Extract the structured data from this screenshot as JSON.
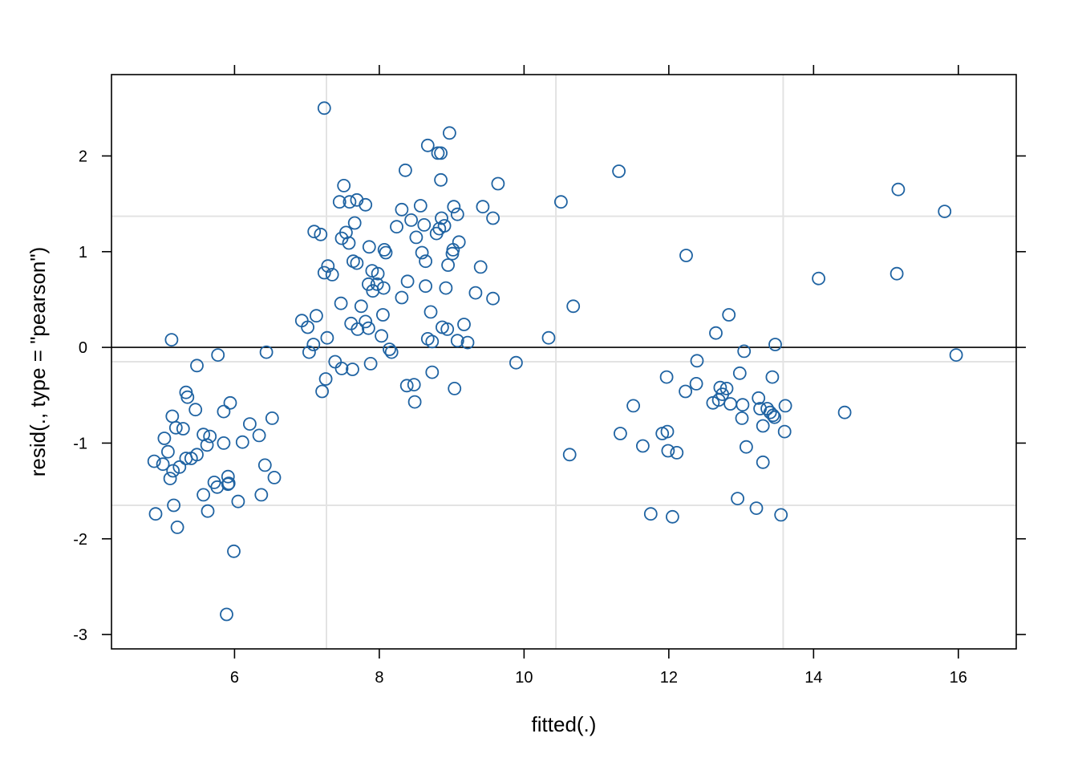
{
  "chart_data": {
    "type": "scatter",
    "xlabel": "fitted(.)",
    "ylabel": "resid(., type = \"pearson\")",
    "xlim": [
      4.3,
      16.8
    ],
    "ylim": [
      -3.15,
      2.85
    ],
    "x_ticks": [
      6,
      8,
      10,
      12,
      14,
      16
    ],
    "y_ticks": [
      -3,
      -2,
      -1,
      0,
      1,
      2
    ],
    "x_tick_labels": [
      "6",
      "8",
      "10",
      "12",
      "14",
      "16"
    ],
    "y_tick_labels": [
      "-3",
      "-2",
      "-1",
      "0",
      "1",
      "2"
    ],
    "reference_lines": {
      "x": [
        7.27,
        10.44,
        13.58
      ],
      "y": [
        -1.65,
        -0.15,
        1.37
      ]
    },
    "zero_line": 0,
    "grid": true,
    "marker_color": "#1f63a2",
    "grid_color": "#e3e3e3",
    "points": [
      [
        7.24,
        2.5
      ],
      [
        8.97,
        2.24
      ],
      [
        8.67,
        2.11
      ],
      [
        8.81,
        2.03
      ],
      [
        8.85,
        2.03
      ],
      [
        8.36,
        1.85
      ],
      [
        11.31,
        1.84
      ],
      [
        15.17,
        1.65
      ],
      [
        8.85,
        1.75
      ],
      [
        9.64,
        1.71
      ],
      [
        7.51,
        1.69
      ],
      [
        7.69,
        1.54
      ],
      [
        10.51,
        1.52
      ],
      [
        7.45,
        1.52
      ],
      [
        7.59,
        1.52
      ],
      [
        7.81,
        1.49
      ],
      [
        8.57,
        1.48
      ],
      [
        9.03,
        1.47
      ],
      [
        9.43,
        1.47
      ],
      [
        8.31,
        1.44
      ],
      [
        15.81,
        1.42
      ],
      [
        9.08,
        1.39
      ],
      [
        8.86,
        1.35
      ],
      [
        9.57,
        1.35
      ],
      [
        8.44,
        1.33
      ],
      [
        7.66,
        1.3
      ],
      [
        8.62,
        1.28
      ],
      [
        8.9,
        1.27
      ],
      [
        8.24,
        1.26
      ],
      [
        8.83,
        1.24
      ],
      [
        7.1,
        1.21
      ],
      [
        7.19,
        1.18
      ],
      [
        8.79,
        1.19
      ],
      [
        7.54,
        1.2
      ],
      [
        7.48,
        1.14
      ],
      [
        8.51,
        1.15
      ],
      [
        9.1,
        1.1
      ],
      [
        7.58,
        1.09
      ],
      [
        7.86,
        1.05
      ],
      [
        8.07,
        1.02
      ],
      [
        9.02,
        1.02
      ],
      [
        8.09,
        0.99
      ],
      [
        8.59,
        0.99
      ],
      [
        9.01,
        0.98
      ],
      [
        12.24,
        0.96
      ],
      [
        8.64,
        0.9
      ],
      [
        7.64,
        0.9
      ],
      [
        7.69,
        0.88
      ],
      [
        8.95,
        0.86
      ],
      [
        9.4,
        0.84
      ],
      [
        7.29,
        0.85
      ],
      [
        7.24,
        0.78
      ],
      [
        7.35,
        0.76
      ],
      [
        7.9,
        0.8
      ],
      [
        7.98,
        0.77
      ],
      [
        15.15,
        0.77
      ],
      [
        14.07,
        0.72
      ],
      [
        8.39,
        0.69
      ],
      [
        7.85,
        0.66
      ],
      [
        7.97,
        0.66
      ],
      [
        8.64,
        0.64
      ],
      [
        8.06,
        0.62
      ],
      [
        8.92,
        0.62
      ],
      [
        7.91,
        0.59
      ],
      [
        9.33,
        0.57
      ],
      [
        8.31,
        0.52
      ],
      [
        9.57,
        0.51
      ],
      [
        7.47,
        0.46
      ],
      [
        7.75,
        0.43
      ],
      [
        10.68,
        0.43
      ],
      [
        8.71,
        0.37
      ],
      [
        7.13,
        0.33
      ],
      [
        8.05,
        0.34
      ],
      [
        12.83,
        0.34
      ],
      [
        6.93,
        0.28
      ],
      [
        7.61,
        0.25
      ],
      [
        7.81,
        0.27
      ],
      [
        9.17,
        0.24
      ],
      [
        7.01,
        0.21
      ],
      [
        7.7,
        0.19
      ],
      [
        7.85,
        0.2
      ],
      [
        8.87,
        0.21
      ],
      [
        8.94,
        0.19
      ],
      [
        12.65,
        0.15
      ],
      [
        8.03,
        0.12
      ],
      [
        10.34,
        0.1
      ],
      [
        7.28,
        0.1
      ],
      [
        8.67,
        0.09
      ],
      [
        8.73,
        0.06
      ],
      [
        9.08,
        0.07
      ],
      [
        9.22,
        0.05
      ],
      [
        7.09,
        0.03
      ],
      [
        13.47,
        0.03
      ],
      [
        5.13,
        0.08
      ],
      [
        8.14,
        -0.02
      ],
      [
        13.04,
        -0.04
      ],
      [
        6.44,
        -0.05
      ],
      [
        7.03,
        -0.05
      ],
      [
        8.17,
        -0.05
      ],
      [
        15.97,
        -0.08
      ],
      [
        5.77,
        -0.08
      ],
      [
        9.89,
        -0.16
      ],
      [
        7.39,
        -0.15
      ],
      [
        7.88,
        -0.17
      ],
      [
        12.39,
        -0.14
      ],
      [
        5.48,
        -0.19
      ],
      [
        7.48,
        -0.22
      ],
      [
        7.63,
        -0.23
      ],
      [
        8.73,
        -0.26
      ],
      [
        12.98,
        -0.27
      ],
      [
        11.97,
        -0.31
      ],
      [
        13.43,
        -0.31
      ],
      [
        7.26,
        -0.33
      ],
      [
        8.38,
        -0.4
      ],
      [
        8.48,
        -0.39
      ],
      [
        12.38,
        -0.38
      ],
      [
        12.71,
        -0.42
      ],
      [
        9.04,
        -0.43
      ],
      [
        12.23,
        -0.46
      ],
      [
        12.8,
        -0.43
      ],
      [
        7.21,
        -0.46
      ],
      [
        5.33,
        -0.47
      ],
      [
        12.74,
        -0.49
      ],
      [
        5.35,
        -0.52
      ],
      [
        13.24,
        -0.53
      ],
      [
        12.69,
        -0.55
      ],
      [
        8.49,
        -0.57
      ],
      [
        12.61,
        -0.58
      ],
      [
        5.94,
        -0.58
      ],
      [
        11.51,
        -0.61
      ],
      [
        12.85,
        -0.59
      ],
      [
        13.02,
        -0.6
      ],
      [
        13.61,
        -0.61
      ],
      [
        13.36,
        -0.64
      ],
      [
        13.26,
        -0.64
      ],
      [
        13.4,
        -0.68
      ],
      [
        5.46,
        -0.65
      ],
      [
        5.85,
        -0.67
      ],
      [
        14.43,
        -0.68
      ],
      [
        13.44,
        -0.71
      ],
      [
        13.46,
        -0.73
      ],
      [
        5.14,
        -0.72
      ],
      [
        13.01,
        -0.74
      ],
      [
        6.52,
        -0.74
      ],
      [
        6.21,
        -0.8
      ],
      [
        13.3,
        -0.82
      ],
      [
        5.19,
        -0.84
      ],
      [
        5.29,
        -0.85
      ],
      [
        13.6,
        -0.88
      ],
      [
        11.33,
        -0.9
      ],
      [
        11.91,
        -0.9
      ],
      [
        5.57,
        -0.91
      ],
      [
        5.66,
        -0.93
      ],
      [
        6.34,
        -0.92
      ],
      [
        11.98,
        -0.88
      ],
      [
        5.03,
        -0.95
      ],
      [
        6.11,
        -0.99
      ],
      [
        5.85,
        -1.0
      ],
      [
        5.62,
        -1.02
      ],
      [
        11.64,
        -1.03
      ],
      [
        13.07,
        -1.04
      ],
      [
        11.99,
        -1.08
      ],
      [
        12.11,
        -1.1
      ],
      [
        5.08,
        -1.09
      ],
      [
        10.63,
        -1.12
      ],
      [
        5.48,
        -1.12
      ],
      [
        5.4,
        -1.16
      ],
      [
        5.33,
        -1.16
      ],
      [
        4.89,
        -1.19
      ],
      [
        13.3,
        -1.2
      ],
      [
        5.01,
        -1.22
      ],
      [
        6.42,
        -1.23
      ],
      [
        5.24,
        -1.25
      ],
      [
        5.15,
        -1.29
      ],
      [
        5.91,
        -1.35
      ],
      [
        6.55,
        -1.36
      ],
      [
        5.11,
        -1.37
      ],
      [
        5.72,
        -1.41
      ],
      [
        5.92,
        -1.42
      ],
      [
        5.91,
        -1.43
      ],
      [
        5.76,
        -1.46
      ],
      [
        5.57,
        -1.54
      ],
      [
        6.37,
        -1.54
      ],
      [
        12.95,
        -1.58
      ],
      [
        6.05,
        -1.61
      ],
      [
        5.16,
        -1.65
      ],
      [
        13.21,
        -1.68
      ],
      [
        5.63,
        -1.71
      ],
      [
        4.91,
        -1.74
      ],
      [
        11.75,
        -1.74
      ],
      [
        13.55,
        -1.75
      ],
      [
        12.05,
        -1.77
      ],
      [
        5.21,
        -1.88
      ],
      [
        5.99,
        -2.13
      ],
      [
        5.89,
        -2.79
      ]
    ]
  }
}
